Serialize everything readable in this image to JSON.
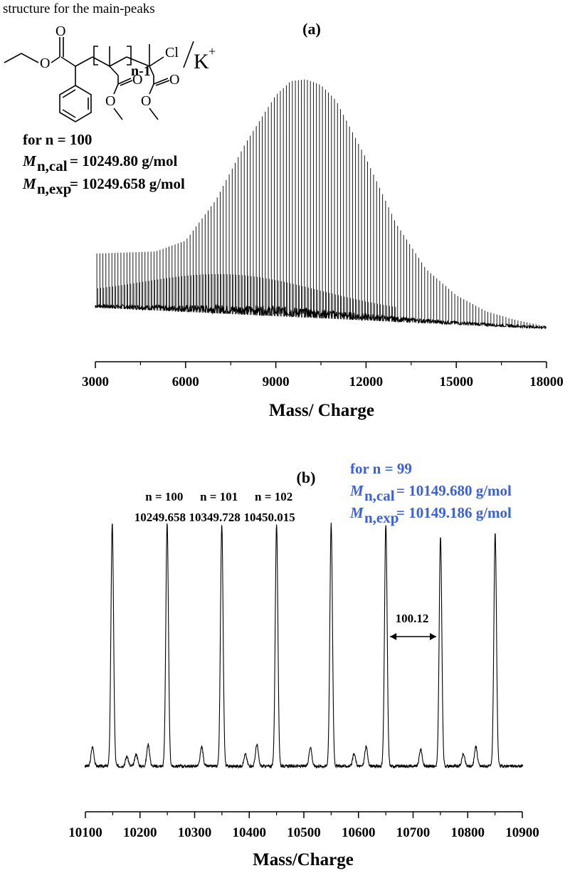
{
  "panel_a": {
    "label": "(a)",
    "structure_caption": "structure for the main-peaks",
    "structure_text": {
      "cl": "Cl",
      "counterion": "K",
      "charge": "+",
      "subscript": "n-1"
    },
    "annotation": {
      "line1": "for n = 100",
      "m": "M",
      "cal_sub": "n,cal",
      "cal_val": "= 10249.80 g/mol",
      "exp_sub": "n,exp",
      "exp_val": "= 10249.658 g/mol"
    }
  },
  "panel_b": {
    "label": "(b)",
    "annotation": {
      "line1": "for n = 99",
      "m": "M",
      "cal_sub": "n,cal",
      "cal_val": "= 10149.680 g/mol",
      "exp_sub": "n,exp",
      "exp_val": "= 10149.186 g/mol",
      "color": "#3a5fe0"
    },
    "peak_labels": [
      {
        "n": "n = 100",
        "mass": "10249.658",
        "x": 10249.658
      },
      {
        "n": "n = 101",
        "mass": "10349.728",
        "x": 10349.728
      },
      {
        "n": "n = 102",
        "mass": "10450.015",
        "x": 10450.015
      }
    ],
    "spacing_label": "100.12"
  },
  "chart_data": [
    {
      "type": "line",
      "title": "(a)",
      "xlabel": "Mass/ Charge",
      "ylabel": "",
      "xlim": [
        3000,
        18000
      ],
      "xticks": [
        3000,
        6000,
        9000,
        12000,
        15000,
        18000
      ],
      "xtick_labels": [
        "3000",
        "6000",
        "9000",
        "12000",
        "15000",
        "18000"
      ],
      "series": [
        {
          "description_peaks": "main peak envelope",
          "x": [
            3000,
            4000,
            5000,
            6000,
            7000,
            8000,
            9000,
            9500,
            10000,
            10500,
            11000,
            12000,
            13000,
            14000,
            15000,
            16000,
            17000,
            18000
          ],
          "y": [
            0.22,
            0.23,
            0.24,
            0.29,
            0.46,
            0.7,
            0.9,
            0.96,
            0.97,
            0.95,
            0.89,
            0.66,
            0.4,
            0.22,
            0.12,
            0.06,
            0.03,
            0.01
          ]
        }
      ]
    },
    {
      "type": "line",
      "title": "(b)",
      "xlabel": "Mass/Charge",
      "ylabel": "",
      "xlim": [
        10100,
        10900
      ],
      "xticks": [
        10100,
        10200,
        10300,
        10400,
        10500,
        10600,
        10700,
        10800,
        10900
      ],
      "xtick_labels": [
        "10100",
        "10200",
        "10300",
        "10400",
        "10500",
        "10600",
        "10700",
        "10800",
        "10900"
      ],
      "main_peaks": {
        "x": [
          10149.186,
          10249.658,
          10349.728,
          10450.015,
          10550.0,
          10650.1,
          10750.2,
          10850.3
        ],
        "y": [
          1.0,
          1.0,
          1.0,
          1.0,
          1.0,
          1.0,
          0.95,
          0.96
        ]
      },
      "side_peaks": {
        "x": [
          10113,
          10176,
          10193,
          10215,
          10313,
          10393,
          10414,
          10512,
          10592,
          10614,
          10714,
          10792,
          10815
        ],
        "y": [
          0.08,
          0.04,
          0.05,
          0.09,
          0.08,
          0.05,
          0.09,
          0.08,
          0.05,
          0.08,
          0.07,
          0.05,
          0.08
        ]
      },
      "spacing_arrow": {
        "from": 10650.1,
        "to": 10750.2,
        "label": "100.12"
      }
    }
  ]
}
